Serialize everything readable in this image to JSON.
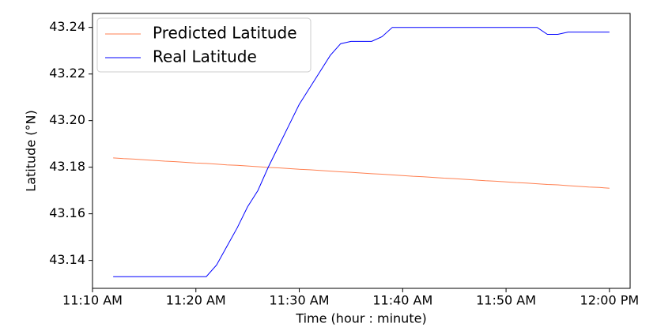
{
  "chart_data": {
    "type": "line",
    "xlabel": "Time (hour : minute)",
    "ylabel": "Latitude (°N)",
    "x": [
      "11:12 AM",
      "11:13 AM",
      "11:14 AM",
      "11:15 AM",
      "11:16 AM",
      "11:17 AM",
      "11:18 AM",
      "11:19 AM",
      "11:20 AM",
      "11:21 AM",
      "11:22 AM",
      "11:23 AM",
      "11:24 AM",
      "11:25 AM",
      "11:26 AM",
      "11:27 AM",
      "11:28 AM",
      "11:29 AM",
      "11:30 AM",
      "11:31 AM",
      "11:32 AM",
      "11:33 AM",
      "11:34 AM",
      "11:35 AM",
      "11:36 AM",
      "11:37 AM",
      "11:38 AM",
      "11:39 AM",
      "11:40 AM",
      "11:41 AM",
      "11:42 AM",
      "11:43 AM",
      "11:44 AM",
      "11:45 AM",
      "11:46 AM",
      "11:47 AM",
      "11:48 AM",
      "11:49 AM",
      "11:50 AM",
      "11:51 AM",
      "11:52 AM",
      "11:53 AM",
      "11:54 AM",
      "11:55 AM",
      "11:56 AM",
      "11:57 AM",
      "11:58 AM",
      "11:59 AM",
      "12:00 PM"
    ],
    "series": [
      {
        "name": "Predicted Latitude",
        "color": "#ff7f50",
        "values": [
          43.184,
          43.1837,
          43.1835,
          43.1832,
          43.1829,
          43.1826,
          43.1824,
          43.1821,
          43.1818,
          43.1816,
          43.1813,
          43.181,
          43.1808,
          43.1805,
          43.1802,
          43.1799,
          43.1797,
          43.1794,
          43.1791,
          43.1789,
          43.1786,
          43.1783,
          43.178,
          43.1778,
          43.1775,
          43.1772,
          43.177,
          43.1767,
          43.1764,
          43.1761,
          43.1759,
          43.1756,
          43.1753,
          43.1751,
          43.1748,
          43.1745,
          43.1742,
          43.174,
          43.1737,
          43.1734,
          43.1732,
          43.1729,
          43.1726,
          43.1724,
          43.1721,
          43.1718,
          43.1715,
          43.1713,
          43.171
        ]
      },
      {
        "name": "Real Latitude",
        "color": "#0000ff",
        "values": [
          43.133,
          43.133,
          43.133,
          43.133,
          43.133,
          43.133,
          43.133,
          43.133,
          43.133,
          43.133,
          43.138,
          43.146,
          43.154,
          43.163,
          43.17,
          43.18,
          43.189,
          43.198,
          43.207,
          43.214,
          43.221,
          43.228,
          43.233,
          43.234,
          43.234,
          43.234,
          43.236,
          43.24,
          43.24,
          43.24,
          43.24,
          43.24,
          43.24,
          43.24,
          43.24,
          43.24,
          43.24,
          43.24,
          43.24,
          43.24,
          43.24,
          43.24,
          43.237,
          43.237,
          43.238,
          43.238,
          43.238,
          43.238,
          43.238
        ]
      }
    ],
    "xlim": [
      "11:10 AM",
      "12:02 PM"
    ],
    "xticks": [
      "11:10 AM",
      "11:20 AM",
      "11:30 AM",
      "11:40 AM",
      "11:50 AM",
      "12:00 PM"
    ],
    "ylim": [
      43.128,
      43.246
    ],
    "yticks": [
      {
        "value": 43.14,
        "label": "43.14"
      },
      {
        "value": 43.16,
        "label": "43.16"
      },
      {
        "value": 43.18,
        "label": "43.18"
      },
      {
        "value": 43.2,
        "label": "43.20"
      },
      {
        "value": 43.22,
        "label": "43.22"
      },
      {
        "value": 43.24,
        "label": "43.24"
      }
    ],
    "legend": "upper left"
  }
}
